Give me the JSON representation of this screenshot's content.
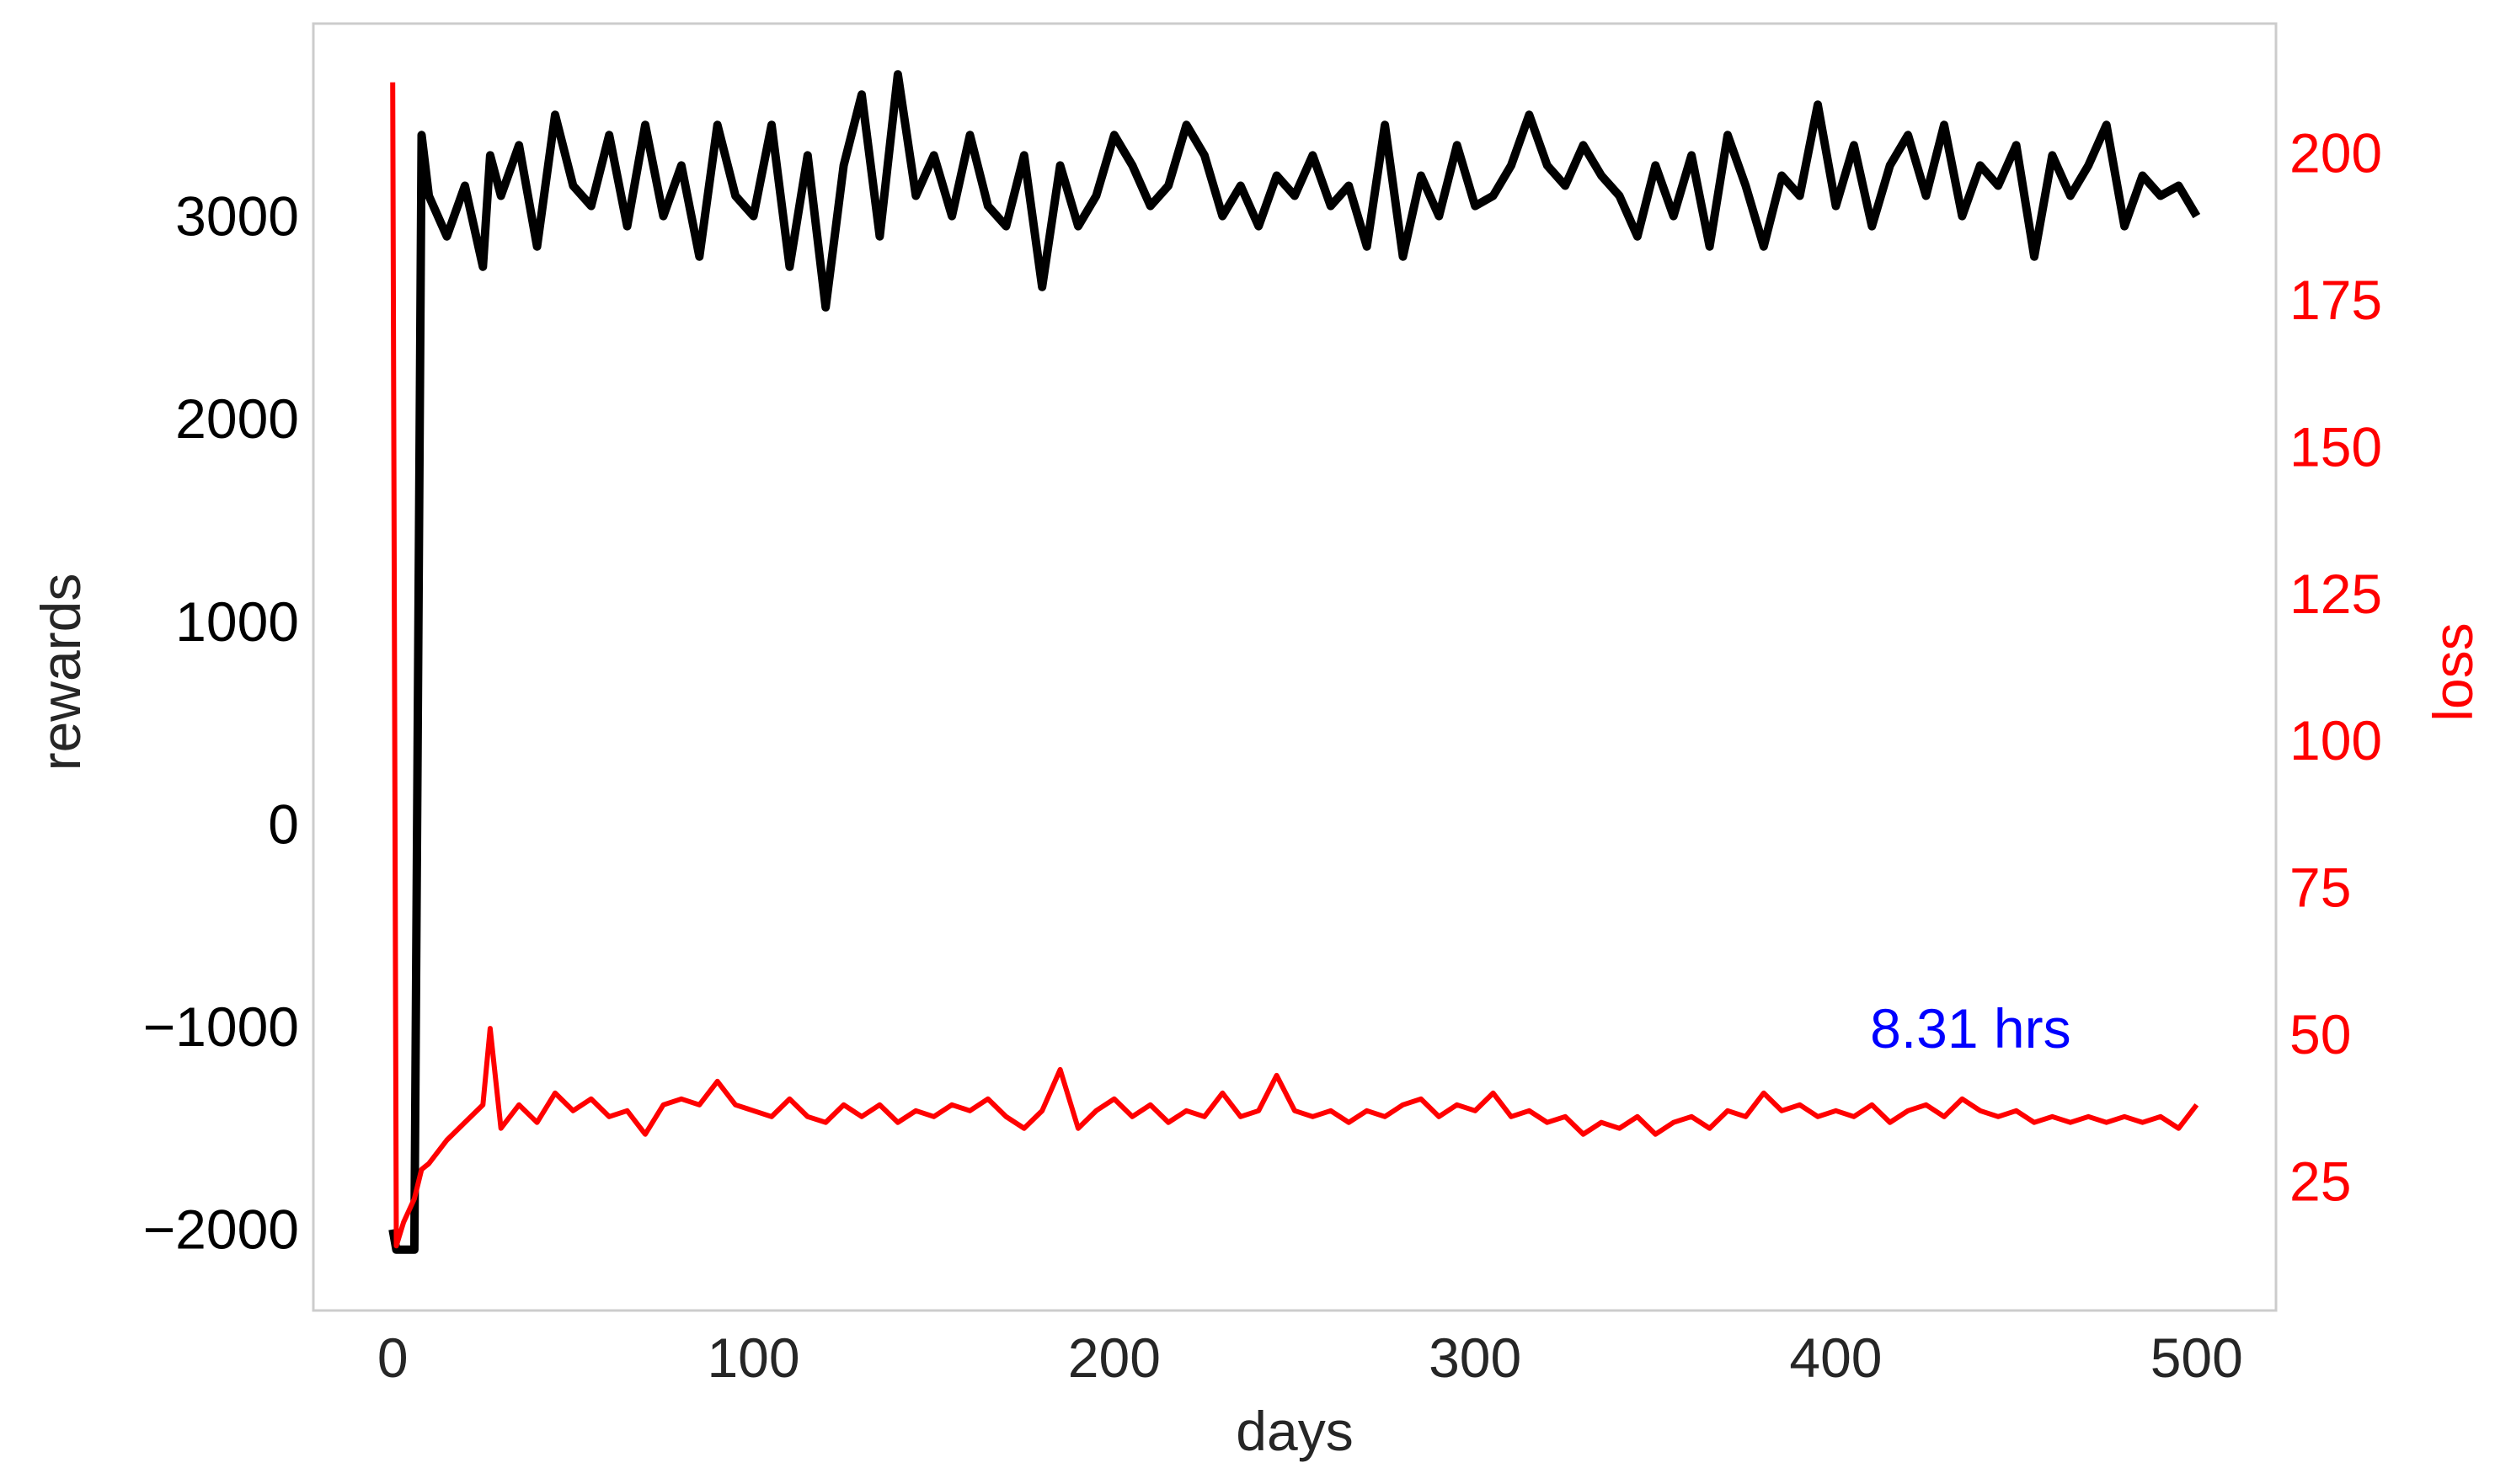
{
  "chart_data": {
    "type": "line",
    "title": "",
    "xlabel": "days",
    "ylabel": "rewards",
    "y2label": "loss",
    "xlim": [
      -22,
      522
    ],
    "ylim": [
      -2400,
      3950
    ],
    "y2lim": [
      3,
      222
    ],
    "grid": false,
    "x_ticks": [
      0,
      100,
      200,
      300,
      400,
      500
    ],
    "x_tick_labels": [
      "0",
      "100",
      "200",
      "300",
      "400",
      "500"
    ],
    "y_ticks": [
      -2000,
      -1000,
      0,
      1000,
      2000,
      3000
    ],
    "y_tick_labels": [
      "−2000",
      "−1000",
      "0",
      "1000",
      "2000",
      "3000"
    ],
    "y2_ticks": [
      25,
      50,
      75,
      100,
      125,
      150,
      175,
      200
    ],
    "y2_tick_labels": [
      "25",
      "50",
      "75",
      "100",
      "125",
      "150",
      "175",
      "200"
    ],
    "annotation": "8.31 hrs",
    "annotation_x": 420,
    "annotation_y2": 52,
    "colors": {
      "rewards": "#000000",
      "loss": "#ff0000",
      "annotation": "#0000ff",
      "frame": "#cccccc"
    },
    "x": [
      0,
      1,
      3,
      6,
      8,
      10,
      15,
      20,
      25,
      27,
      30,
      35,
      40,
      45,
      50,
      55,
      60,
      65,
      70,
      75,
      80,
      85,
      90,
      95,
      100,
      105,
      110,
      115,
      120,
      125,
      130,
      135,
      140,
      145,
      150,
      155,
      160,
      165,
      170,
      175,
      180,
      185,
      190,
      195,
      200,
      205,
      210,
      215,
      220,
      225,
      230,
      235,
      240,
      245,
      250,
      255,
      260,
      265,
      270,
      275,
      280,
      285,
      290,
      295,
      300,
      305,
      310,
      315,
      320,
      325,
      330,
      335,
      340,
      345,
      350,
      355,
      360,
      365,
      370,
      375,
      380,
      385,
      390,
      395,
      400,
      405,
      410,
      415,
      420,
      425,
      430,
      435,
      440,
      445,
      450,
      455,
      460,
      465,
      470,
      475,
      480,
      485,
      490,
      495,
      500
    ],
    "series": [
      {
        "name": "rewards",
        "axis": "left",
        "values": [
          -2000,
          -2100,
          -2100,
          -2100,
          3400,
          3100,
          2900,
          3150,
          2750,
          3300,
          3100,
          3350,
          2850,
          3500,
          3150,
          3050,
          3400,
          2950,
          3450,
          3000,
          3250,
          2800,
          3450,
          3100,
          3000,
          3450,
          2750,
          3300,
          2550,
          3250,
          3600,
          2900,
          3700,
          3100,
          3300,
          3000,
          3400,
          3050,
          2950,
          3300,
          2650,
          3250,
          2950,
          3100,
          3400,
          3250,
          3050,
          3150,
          3450,
          3300,
          3000,
          3150,
          2950,
          3200,
          3100,
          3300,
          3050,
          3150,
          2850,
          3450,
          2800,
          3200,
          3000,
          3350,
          3050,
          3100,
          3250,
          3500,
          3250,
          3150,
          3350,
          3200,
          3100,
          2900,
          3250,
          3000,
          3300,
          2850,
          3400,
          3150,
          2850,
          3200,
          3100,
          3550,
          3050,
          3350,
          2950,
          3250,
          3400,
          3100,
          3450,
          3000,
          3250,
          3150,
          3350,
          2800,
          3300,
          3100,
          3250,
          3450,
          2950,
          3200,
          3100,
          3150,
          3000
        ]
      },
      {
        "name": "loss",
        "axis": "right",
        "values": [
          212,
          14,
          18,
          22,
          27,
          28,
          32,
          35,
          38,
          51,
          34,
          38,
          35,
          40,
          37,
          39,
          36,
          37,
          33,
          38,
          39,
          38,
          42,
          38,
          37,
          36,
          39,
          36,
          35,
          38,
          36,
          38,
          35,
          37,
          36,
          38,
          37,
          39,
          36,
          34,
          37,
          44,
          34,
          37,
          39,
          36,
          38,
          35,
          37,
          36,
          40,
          36,
          37,
          43,
          37,
          36,
          37,
          35,
          37,
          36,
          38,
          39,
          36,
          38,
          37,
          40,
          36,
          37,
          35,
          36,
          33,
          35,
          34,
          36,
          33,
          35,
          36,
          34,
          37,
          36,
          40,
          37,
          38,
          36,
          37,
          36,
          38,
          35,
          37,
          38,
          36,
          39,
          37,
          36,
          37,
          35,
          36,
          35,
          36,
          35,
          36,
          35,
          36,
          34,
          38
        ]
      }
    ]
  }
}
